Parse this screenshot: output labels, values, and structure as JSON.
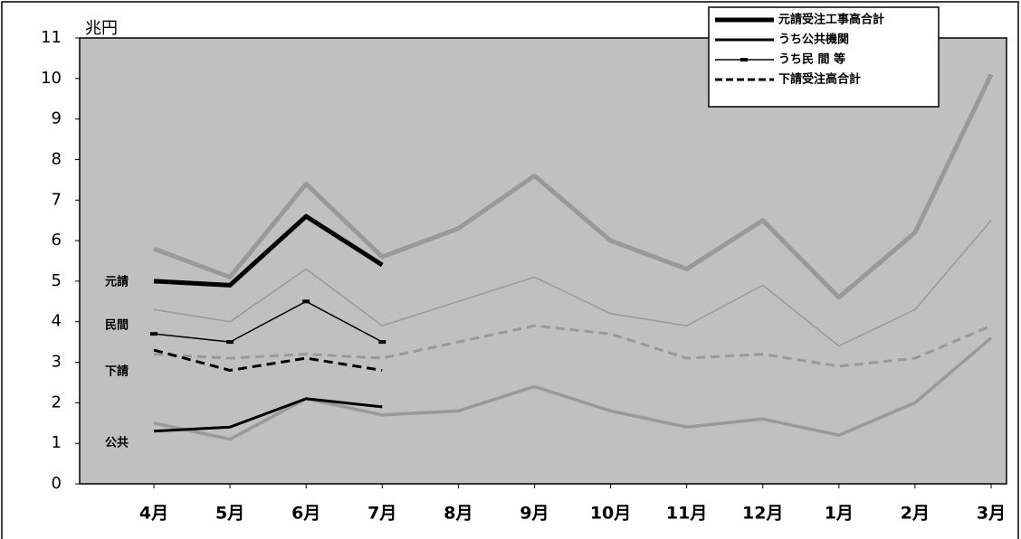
{
  "chart_data": {
    "type": "line",
    "unit_label": "兆円",
    "categories": [
      "4月",
      "5月",
      "6月",
      "7月",
      "8月",
      "9月",
      "10月",
      "11月",
      "12月",
      "1月",
      "2月",
      "3月"
    ],
    "ylim": [
      0,
      11
    ],
    "yticks": [
      0,
      1,
      2,
      3,
      4,
      5,
      6,
      7,
      8,
      9,
      10,
      11
    ],
    "plot_background": "#c0c0c0",
    "series": [
      {
        "color": "#999999",
        "width": 5,
        "dash": false,
        "markers": false,
        "values": [
          5.8,
          5.1,
          7.4,
          5.6,
          6.3,
          7.6,
          6.0,
          5.3,
          6.5,
          4.6,
          6.2,
          10.1
        ]
      },
      {
        "color": "#999999",
        "width": 1.5,
        "dash": false,
        "markers": false,
        "values": [
          4.3,
          4.0,
          5.3,
          3.9,
          4.5,
          5.1,
          4.2,
          3.9,
          4.9,
          3.4,
          4.3,
          6.5
        ]
      },
      {
        "color": "#999999",
        "width": 3.5,
        "dash": false,
        "markers": false,
        "values": [
          1.5,
          1.1,
          2.1,
          1.7,
          1.8,
          2.4,
          1.8,
          1.4,
          1.6,
          1.2,
          2.0,
          3.6
        ]
      },
      {
        "color": "#999999",
        "width": 3,
        "dash": true,
        "markers": false,
        "values": [
          3.2,
          3.1,
          3.2,
          3.1,
          3.5,
          3.9,
          3.7,
          3.1,
          3.2,
          2.9,
          3.1,
          3.9
        ]
      },
      {
        "name": "元請受注工事高合計",
        "color": "#000000",
        "width": 5,
        "dash": false,
        "markers": false,
        "values": [
          5.0,
          4.9,
          6.6,
          5.4,
          null,
          null,
          null,
          null,
          null,
          null,
          null,
          null
        ]
      },
      {
        "name": "うち公共機関",
        "color": "#000000",
        "width": 3,
        "dash": false,
        "markers": false,
        "values": [
          1.3,
          1.4,
          2.1,
          1.9,
          null,
          null,
          null,
          null,
          null,
          null,
          null,
          null
        ]
      },
      {
        "name": "うち民 間 等",
        "color": "#000000",
        "width": 1.5,
        "dash": false,
        "markers": true,
        "values": [
          3.7,
          3.5,
          4.5,
          3.5,
          null,
          null,
          null,
          null,
          null,
          null,
          null,
          null
        ]
      },
      {
        "name": "下請受注高合計",
        "color": "#000000",
        "width": 3,
        "dash": true,
        "markers": false,
        "values": [
          3.3,
          2.8,
          3.1,
          2.8,
          null,
          null,
          null,
          null,
          null,
          null,
          null,
          null
        ]
      }
    ],
    "annotations": [
      "元請",
      "民間",
      "下請",
      "公共"
    ]
  }
}
